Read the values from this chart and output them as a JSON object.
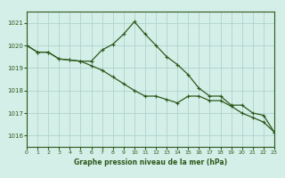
{
  "line1_x": [
    0,
    1,
    2,
    3,
    4,
    5,
    6,
    7,
    8,
    9,
    10,
    11,
    12,
    13,
    14,
    15,
    16,
    17,
    18,
    19,
    20,
    21,
    22,
    23
  ],
  "line1_y": [
    1020.0,
    1019.7,
    1019.7,
    1019.4,
    1019.35,
    1019.3,
    1019.3,
    1019.8,
    1020.05,
    1020.5,
    1021.05,
    1020.5,
    1020.0,
    1019.5,
    1019.15,
    1018.7,
    1018.1,
    1017.75,
    1017.75,
    1017.35,
    1017.35,
    1017.0,
    1016.9,
    1016.15
  ],
  "line2_x": [
    0,
    1,
    2,
    3,
    4,
    5,
    6,
    7,
    8,
    9,
    10,
    11,
    12,
    13,
    14,
    15,
    16,
    17,
    18,
    19,
    20,
    21,
    22,
    23
  ],
  "line2_y": [
    1020.0,
    1019.7,
    1019.7,
    1019.4,
    1019.35,
    1019.3,
    1019.1,
    1018.9,
    1018.6,
    1018.3,
    1018.0,
    1017.75,
    1017.75,
    1017.6,
    1017.45,
    1017.75,
    1017.75,
    1017.55,
    1017.55,
    1017.3,
    1017.0,
    1016.8,
    1016.6,
    1016.15
  ],
  "line_color": "#2d5a1b",
  "bg_color": "#d4eee8",
  "grid_color": "#b0d4cc",
  "xlabel": "Graphe pression niveau de la mer (hPa)",
  "ylim_min": 1015.5,
  "ylim_max": 1021.5,
  "xlim_min": 0,
  "xlim_max": 23,
  "yticks": [
    1016,
    1017,
    1018,
    1019,
    1020,
    1021
  ],
  "xticks": [
    0,
    1,
    2,
    3,
    4,
    5,
    6,
    7,
    8,
    9,
    10,
    11,
    12,
    13,
    14,
    15,
    16,
    17,
    18,
    19,
    20,
    21,
    22,
    23
  ]
}
